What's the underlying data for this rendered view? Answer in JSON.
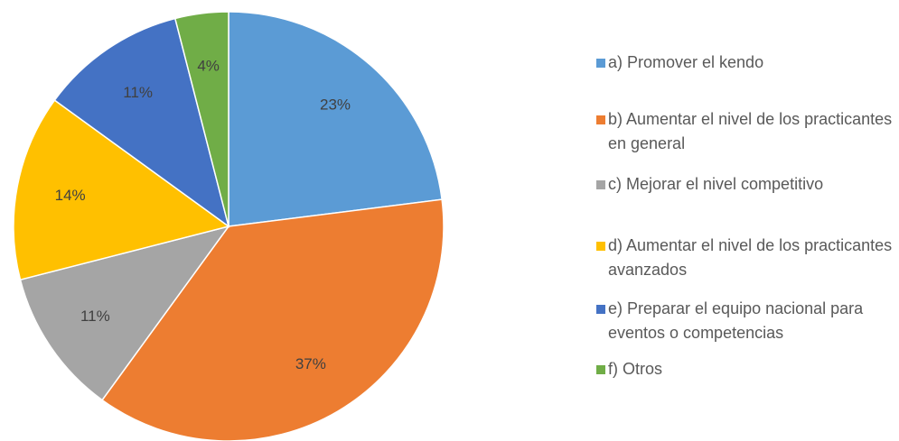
{
  "chart_data": {
    "type": "pie",
    "categories": [
      "a) Promover el kendo",
      "b) Aumentar el nivel de los practicantes en general",
      "c) Mejorar el nivel competitivo",
      "d) Aumentar el nivel de los practicantes avanzados",
      "e) Preparar el equipo nacional para eventos o competencias",
      "f) Otros"
    ],
    "values": [
      23,
      37,
      11,
      14,
      11,
      4
    ],
    "value_labels": [
      "23%",
      "37%",
      "11%",
      "14%",
      "11%",
      "4%"
    ],
    "colors": [
      "#5b9bd5",
      "#ed7d31",
      "#a5a5a5",
      "#ffc000",
      "#4472c4",
      "#70ad47"
    ],
    "legend": "right"
  }
}
